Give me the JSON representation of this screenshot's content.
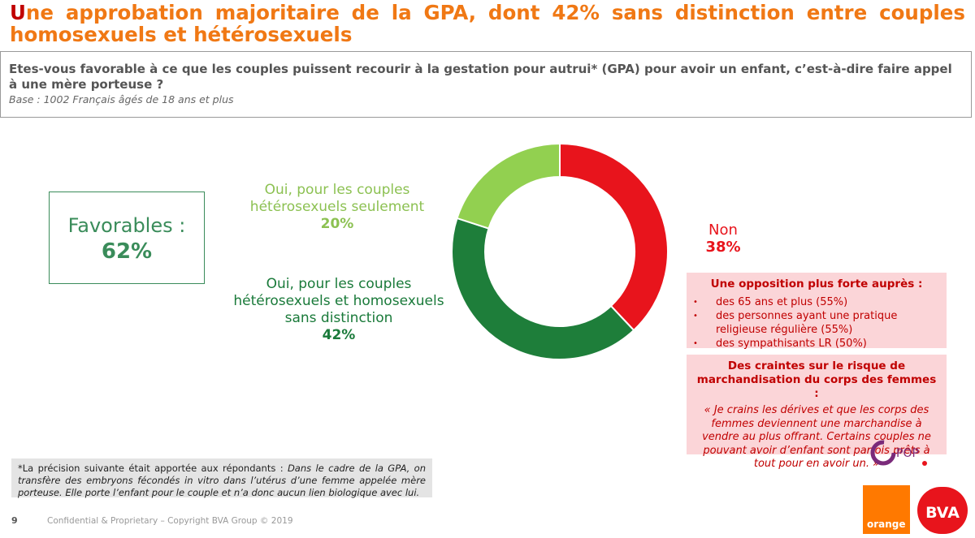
{
  "header": {
    "title_first": "U",
    "title_rest": "ne approbation majoritaire de la GPA, dont 42% sans distinction entre couples homosexuels et hétérosexuels"
  },
  "question": {
    "text": "Etes-vous favorable à ce que les couples puissent recourir à la gestation pour autrui* (GPA) pour avoir un enfant, c’est-à-dire faire appel à une mère porteuse ?",
    "base": "Base : 1002 Français âgés de 18 ans et plus"
  },
  "favorables": {
    "label": "Favorables :",
    "value": "62%"
  },
  "colors": {
    "non": "#e8141c",
    "oui_hetero": "#92d050",
    "oui_both": "#1e7e3a",
    "accent": "#f07814"
  },
  "chart_data": {
    "type": "pie",
    "donut": true,
    "slices": [
      {
        "label_lines": [
          "Non"
        ],
        "value": 38,
        "value_label": "38%",
        "color": "#e8141c"
      },
      {
        "label_lines": [
          "Oui, pour les couples",
          "hétérosexuels et homosexuels",
          "sans distinction"
        ],
        "value": 42,
        "value_label": "42%",
        "color": "#1e7e3a"
      },
      {
        "label_lines": [
          "Oui, pour les couples",
          "hétérosexuels seulement"
        ],
        "value": 20,
        "value_label": "20%",
        "color": "#92d050"
      }
    ]
  },
  "opposition": {
    "title": "Une opposition plus forte auprès :",
    "items": [
      "des 65 ans et plus (55%)",
      "des personnes ayant une pratique religieuse régulière (55%)",
      "des sympathisants LR (50%)"
    ]
  },
  "craintes": {
    "title": "Des craintes sur le risque de marchandisation du corps des femmes :",
    "quote": "« Je crains les dérives et que les corps des femmes deviennent une marchandise à vendre au plus offrant. Certains couples ne pouvant avoir d’enfant sont parfois prêts à tout pour en avoir un. »"
  },
  "pop_logo": {
    "text": "POP"
  },
  "footnote": {
    "intro": "*La précision suivante était apportée aux répondants : ",
    "italic": "Dans le cadre de la GPA, on transfère des embryons fécondés in vitro dans l’utérus d’une femme appelée mère porteuse. Elle porte l’enfant pour le couple et n’a donc aucun lien biologique avec lui."
  },
  "footer": {
    "page": "9",
    "confidential": "Confidential & Proprietary – Copyright BVA Group ©  2019",
    "orange_logo": "orange",
    "bva_logo": "BVA"
  }
}
